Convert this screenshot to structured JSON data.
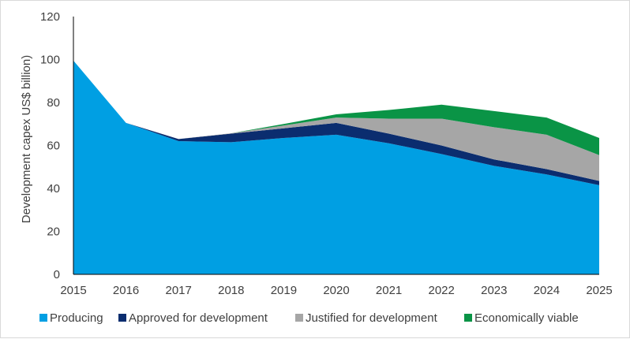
{
  "chart_data": {
    "type": "area",
    "stacked": true,
    "title": "",
    "xlabel": "",
    "ylabel": "Development capex US$ billion)",
    "x": [
      "2015",
      "2016",
      "2017",
      "2018",
      "2019",
      "2020",
      "2021",
      "2022",
      "2023",
      "2024",
      "2025"
    ],
    "ylim": [
      0,
      120
    ],
    "yticks": [
      0,
      20,
      40,
      60,
      80,
      100,
      120
    ],
    "grid": false,
    "legend_position": "bottom",
    "series": [
      {
        "name": "Producing",
        "color": "#009fe3",
        "values": [
          99.5,
          70.5,
          62,
          61.5,
          63.5,
          65,
          61,
          56,
          50.5,
          46.5,
          41.5
        ]
      },
      {
        "name": "Approved for development",
        "color": "#0b2d6f",
        "values": [
          0,
          0,
          1,
          4,
          4.5,
          5.5,
          4.5,
          4,
          3,
          2.5,
          2
        ]
      },
      {
        "name": "Justified for development",
        "color": "#a6a6a6",
        "values": [
          0,
          0,
          0,
          0.2,
          1.3,
          2.5,
          7,
          12.5,
          15,
          16,
          12
        ]
      },
      {
        "name": "Economically viable",
        "color": "#0a9446",
        "values": [
          0,
          0,
          0,
          0,
          0.7,
          1.5,
          4,
          6.5,
          7.5,
          8,
          8
        ]
      }
    ]
  }
}
